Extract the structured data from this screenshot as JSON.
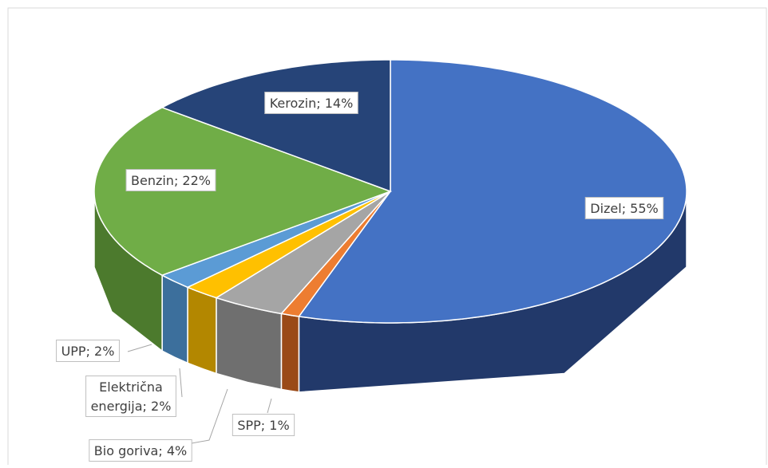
{
  "chart_data": {
    "type": "pie3d",
    "values": [
      55,
      1,
      4,
      2,
      2,
      22,
      14
    ],
    "value_labels": [
      "Dizel; 55%",
      "SPP; 1%",
      "Bio goriva; 4%",
      "Električna energija; 2%",
      "UPP; 2%",
      "Benzin; 22%",
      "Kerozin; 14%"
    ],
    "colors": [
      "#4472c4",
      "#ed7d31",
      "#a5a5a5",
      "#ffc000",
      "#5b9bd5",
      "#70ad47",
      "#264478"
    ],
    "side_colors": [
      "#22396a",
      "#9a4a17",
      "#6f6f6f",
      "#b38700",
      "#3c6f9c",
      "#4c7a2d",
      "#1a2f55"
    ]
  }
}
